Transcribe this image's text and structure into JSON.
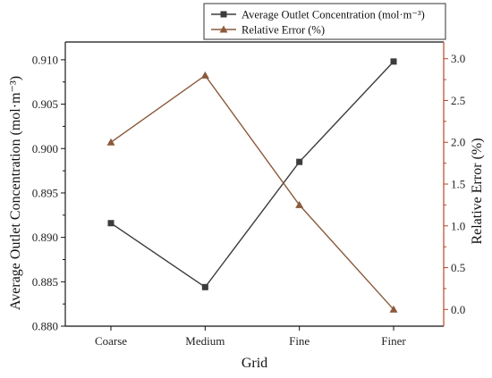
{
  "chart_data": {
    "type": "line",
    "xlabel": "Grid",
    "categories": [
      "Coarse",
      "Medium",
      "Fine",
      "Finer"
    ],
    "y_left": {
      "label": "Average Outlet Concentration (mol·m⁻³)",
      "ylim": [
        0.88,
        0.912
      ],
      "ticks": [
        "0.880",
        "0.885",
        "0.890",
        "0.895",
        "0.900",
        "0.905",
        "0.910"
      ],
      "color": "#1a1a1a"
    },
    "y_right": {
      "label": "Relative Error (%)",
      "ylim": [
        -0.2,
        3.2
      ],
      "ticks": [
        "0.0",
        "0.5",
        "1.0",
        "1.5",
        "2.0",
        "2.5",
        "3.0"
      ],
      "color": "#b5472c"
    },
    "series": [
      {
        "name": "Average Outlet Concentration (mol·m⁻³)",
        "axis": "left",
        "marker": "square",
        "color": "#3c3c3c",
        "values": [
          0.8916,
          0.8844,
          0.8985,
          0.9098
        ]
      },
      {
        "name": "Relative Error (%)",
        "axis": "right",
        "marker": "triangle",
        "color": "#8b5a3c",
        "values": [
          2.0,
          2.8,
          1.25,
          0.0
        ]
      }
    ],
    "legend_position": "top-right",
    "grid": false
  }
}
